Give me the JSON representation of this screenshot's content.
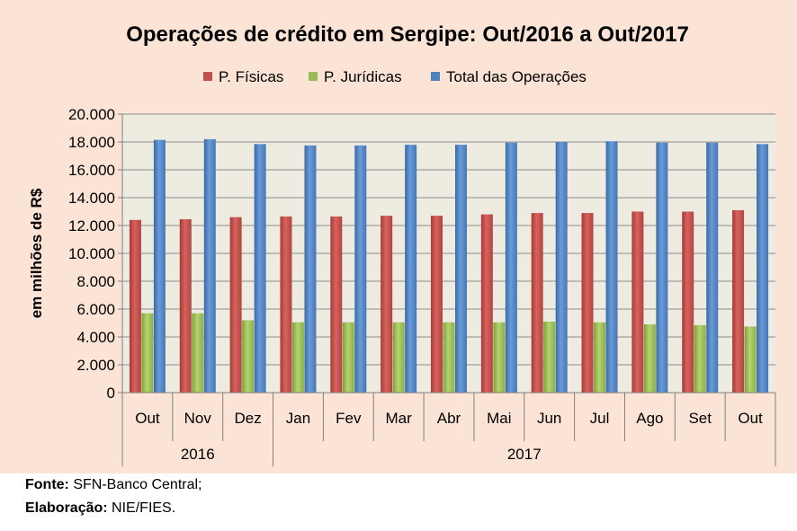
{
  "chart_data": {
    "type": "bar",
    "title": "Operações de crédito em Sergipe: Out/2016 a Out/2017",
    "ylabel": "em milhões de R$",
    "xlabel": "",
    "ylim": [
      0,
      20000
    ],
    "yticks": [
      "0",
      "2.000",
      "4.000",
      "6.000",
      "8.000",
      "10.000",
      "12.000",
      "14.000",
      "16.000",
      "18.000",
      "20.000"
    ],
    "categories": [
      "Out",
      "Nov",
      "Dez",
      "Jan",
      "Fev",
      "Mar",
      "Abr",
      "Mai",
      "Jun",
      "Jul",
      "Ago",
      "Set",
      "Out"
    ],
    "year_groups": [
      {
        "label": "2016",
        "count": 3
      },
      {
        "label": "2017",
        "count": 10
      }
    ],
    "series": [
      {
        "name": "P. Físicas",
        "color": "#c0504d",
        "values": [
          12400,
          12450,
          12600,
          12650,
          12650,
          12700,
          12700,
          12800,
          12900,
          12900,
          13000,
          13000,
          13100
        ]
      },
      {
        "name": "P. Jurídicas",
        "color": "#9bbb59",
        "values": [
          5700,
          5700,
          5200,
          5050,
          5050,
          5050,
          5050,
          5050,
          5100,
          5050,
          4900,
          4850,
          4750
        ]
      },
      {
        "name": "Total das Operações",
        "color": "#4f81bd",
        "values": [
          18150,
          18200,
          17850,
          17750,
          17750,
          17800,
          17800,
          17950,
          18000,
          18050,
          17950,
          17950,
          17850
        ]
      }
    ],
    "grid": true,
    "legend_position": "top"
  },
  "source": {
    "fonte_label": "Fonte:",
    "fonte_value": "SFN-Banco Central;",
    "elaboracao_label": "Elaboração:",
    "elaboracao_value": "NIE/FIES."
  }
}
